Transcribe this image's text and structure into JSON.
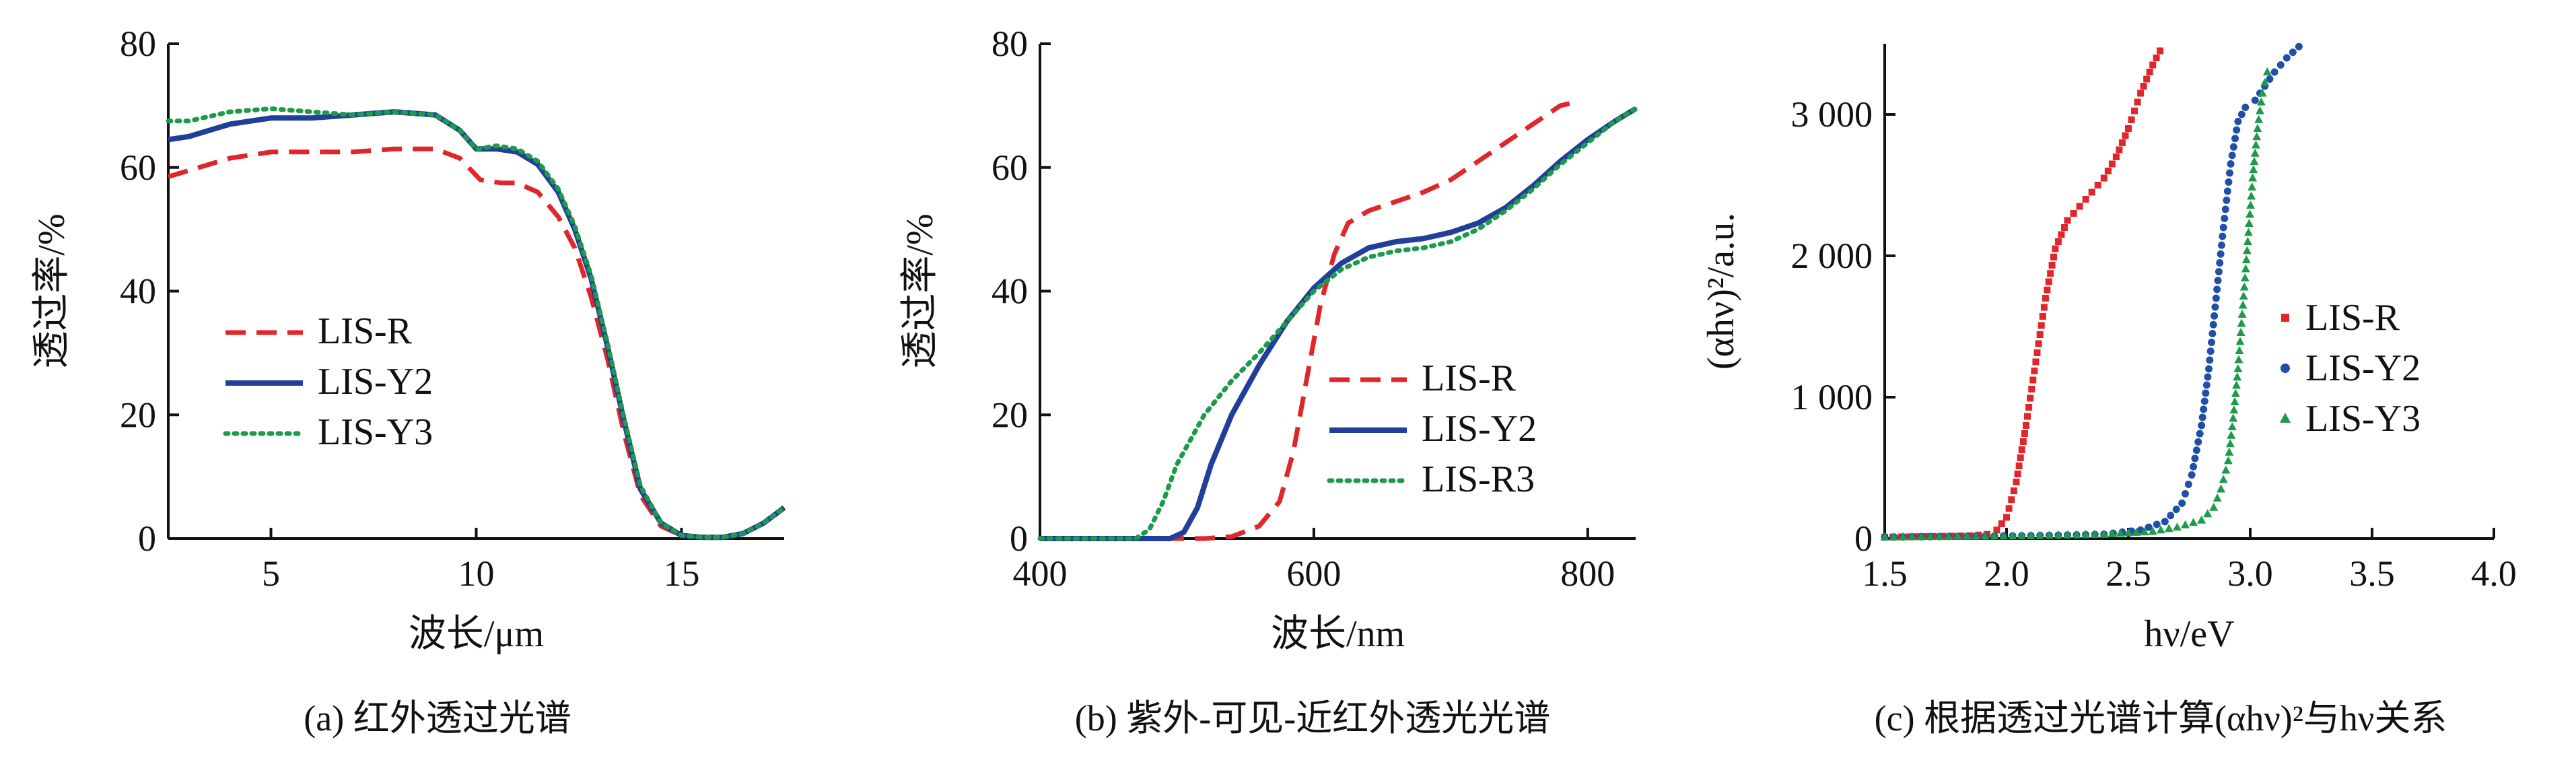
{
  "chart_data": [
    {
      "type": "line",
      "caption": "(a) 红外透过光谱",
      "xlabel": "波长/μm",
      "ylabel": "透过率/%",
      "xlim": [
        2.5,
        17.5
      ],
      "ylim": [
        0,
        80
      ],
      "xticks": [
        5,
        10,
        15
      ],
      "yticks": [
        0,
        20,
        40,
        60,
        80
      ],
      "legend": "left-middle",
      "series": [
        {
          "name": "LIS-R",
          "color": "#e0262b",
          "style": "dashed",
          "x": [
            2.5,
            3,
            4,
            5,
            6,
            7,
            8,
            9,
            9.6,
            10.1,
            10.6,
            11,
            11.5,
            12,
            12.4,
            12.8,
            13.2,
            13.6,
            14,
            14.5,
            15,
            15.5,
            16,
            16.5,
            17,
            17.5
          ],
          "y": [
            58.5,
            59.5,
            61.5,
            62.5,
            62.5,
            62.5,
            63,
            63,
            61.5,
            58,
            57.5,
            57.5,
            56,
            52,
            47,
            39,
            29,
            17,
            7,
            2,
            0.5,
            0.2,
            0.2,
            0.8,
            2.5,
            5
          ]
        },
        {
          "name": "LIS-Y2",
          "color": "#1f3f9a",
          "style": "solid",
          "x": [
            2.5,
            3,
            4,
            5,
            6,
            7,
            8,
            9,
            9.6,
            10,
            10.5,
            11,
            11.5,
            12,
            12.4,
            12.8,
            13.2,
            13.6,
            14,
            14.5,
            15,
            15.5,
            16,
            16.5,
            17,
            17.5
          ],
          "y": [
            64.5,
            65,
            67,
            68,
            68,
            68.5,
            69,
            68.5,
            66,
            63,
            63,
            62.5,
            60.5,
            56,
            50,
            42,
            31,
            19,
            8,
            2.5,
            0.5,
            0.2,
            0.2,
            0.8,
            2.5,
            5
          ]
        },
        {
          "name": "LIS-Y3",
          "color": "#1e9a4b",
          "style": "dotted",
          "x": [
            2.5,
            3,
            4,
            5,
            6,
            7,
            8,
            9,
            9.6,
            10,
            10.5,
            11,
            11.5,
            12,
            12.4,
            12.8,
            13.2,
            13.6,
            14,
            14.5,
            15,
            15.5,
            16,
            16.5,
            17,
            17.5
          ],
          "y": [
            67.5,
            67.5,
            69,
            69.5,
            69,
            68.5,
            69,
            68.5,
            66,
            63,
            63.5,
            63,
            61,
            56.5,
            50.5,
            42.5,
            31.5,
            19.5,
            8.5,
            2.5,
            0.5,
            0.2,
            0.2,
            0.8,
            2.5,
            5
          ]
        }
      ]
    },
    {
      "type": "line",
      "caption": "(b) 紫外-可见-近红外透光光谱",
      "xlabel": "波长/nm",
      "ylabel": "透过率/%",
      "xlim": [
        400,
        835
      ],
      "ylim": [
        0,
        80
      ],
      "xticks": [
        400,
        600,
        800
      ],
      "yticks": [
        0,
        20,
        40,
        60,
        80
      ],
      "legend": "right-bottom",
      "series": [
        {
          "name": "LIS-R",
          "color": "#e0262b",
          "style": "dashed",
          "x": [
            400,
            520,
            540,
            560,
            575,
            585,
            595,
            605,
            615,
            625,
            640,
            660,
            680,
            700,
            720,
            740,
            760,
            780,
            790
          ],
          "y": [
            0,
            0,
            0.3,
            2,
            6,
            14,
            26,
            38,
            46,
            51,
            53,
            54.5,
            56,
            58,
            61,
            64,
            67,
            70,
            70.5
          ]
        },
        {
          "name": "LIS-Y2",
          "color": "#1f3f9a",
          "style": "solid",
          "x": [
            400,
            495,
            505,
            515,
            525,
            540,
            560,
            580,
            600,
            620,
            640,
            660,
            680,
            700,
            720,
            740,
            760,
            780,
            800,
            820,
            835
          ],
          "y": [
            0,
            0,
            1,
            5,
            12,
            20,
            28,
            35,
            40.5,
            44.5,
            47,
            48,
            48.5,
            49.5,
            51,
            53.5,
            57,
            61,
            64.5,
            67.5,
            69.5
          ]
        },
        {
          "name": "LIS-R3",
          "color": "#1e9a4b",
          "style": "dotted",
          "x": [
            400,
            470,
            480,
            490,
            500,
            520,
            540,
            560,
            580,
            600,
            620,
            640,
            660,
            680,
            700,
            720,
            740,
            760,
            780,
            800,
            820,
            835
          ],
          "y": [
            0,
            0,
            1.5,
            6,
            12,
            20,
            25.5,
            30,
            35,
            40,
            43.5,
            45.5,
            46.5,
            47,
            48,
            50,
            53,
            56.5,
            60.5,
            64,
            67.5,
            69.5
          ]
        }
      ]
    },
    {
      "type": "scatter",
      "caption": "(c) 根据透过光谱计算(αhν)²与hν关系",
      "xlabel": "hν/eV",
      "ylabel": "(αhν)²/a.u.",
      "xlim": [
        1.5,
        4.0
      ],
      "ylim": [
        0,
        3500
      ],
      "xticks": [
        1.5,
        2.0,
        2.5,
        3.0,
        3.5,
        4.0
      ],
      "xtick_labels": [
        "1.5",
        "2.0",
        "2.5",
        "3.0",
        "3.5",
        "4.0"
      ],
      "yticks": [
        0,
        1000,
        2000,
        3000
      ],
      "ytick_labels": [
        "0",
        "1 000",
        "2 000",
        "3 000"
      ],
      "legend": "right-middle",
      "series": [
        {
          "name": "LIS-R",
          "color": "#e0262b",
          "marker": "square",
          "x": [
            1.5,
            1.7,
            1.85,
            1.92,
            1.96,
            2.0,
            2.04,
            2.08,
            2.12,
            2.16,
            2.2,
            2.25,
            2.3,
            2.35,
            2.4,
            2.45,
            2.5,
            2.55,
            2.6,
            2.63
          ],
          "y": [
            10,
            15,
            20,
            30,
            60,
            150,
            400,
            800,
            1250,
            1700,
            2050,
            2250,
            2350,
            2450,
            2550,
            2700,
            2900,
            3150,
            3350,
            3450
          ]
        },
        {
          "name": "LIS-Y2",
          "color": "#1f4fa8",
          "marker": "circle",
          "x": [
            1.5,
            1.8,
            2.1,
            2.4,
            2.55,
            2.65,
            2.72,
            2.76,
            2.8,
            2.83,
            2.86,
            2.89,
            2.92,
            2.95,
            2.98,
            3.02,
            3.06,
            3.1,
            3.15,
            3.2
          ],
          "y": [
            10,
            15,
            20,
            30,
            60,
            120,
            250,
            450,
            800,
            1200,
            1700,
            2200,
            2650,
            2950,
            3050,
            3100,
            3200,
            3300,
            3400,
            3480
          ]
        },
        {
          "name": "LIS-Y3",
          "color": "#1e9a4b",
          "marker": "triangle",
          "x": [
            1.5,
            1.8,
            2.1,
            2.4,
            2.6,
            2.7,
            2.8,
            2.85,
            2.88,
            2.91,
            2.93,
            2.95,
            2.97,
            2.99,
            3.01,
            3.03,
            3.05,
            3.07
          ],
          "y": [
            10,
            15,
            20,
            30,
            50,
            80,
            130,
            220,
            350,
            550,
            850,
            1200,
            1650,
            2100,
            2550,
            2900,
            3150,
            3300
          ]
        }
      ]
    }
  ]
}
